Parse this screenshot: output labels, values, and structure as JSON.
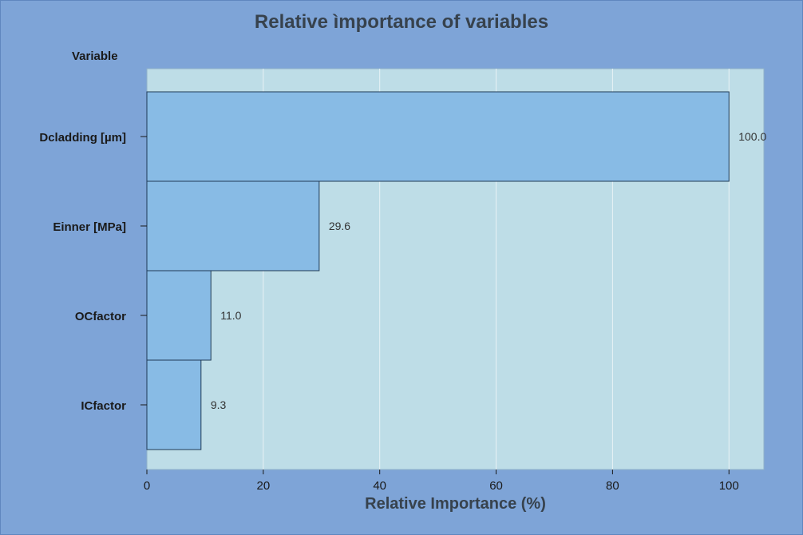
{
  "chart_data": {
    "type": "bar",
    "orientation": "horizontal",
    "title": "Relative ìmportance of variables",
    "ylabel": "Variable",
    "xlabel": "Relative Importance (%)",
    "categories": [
      "Dcladding [µm]",
      "Einner [MPa]",
      "OCfactor",
      "ICfactor"
    ],
    "values": [
      100.0,
      29.6,
      11.0,
      9.3
    ],
    "data_labels": [
      "100.0",
      "29.6",
      "11.0",
      "9.3"
    ],
    "xlim": [
      0,
      106
    ],
    "xticks": [
      0,
      20,
      40,
      60,
      80,
      100
    ],
    "grid": true,
    "colors": {
      "background": "#7ea4d7",
      "plot_area": "#bedde7",
      "bar_fill": "#88bbe5",
      "bar_stroke": "#1f3a56",
      "grid": "#e8f2f6"
    }
  }
}
